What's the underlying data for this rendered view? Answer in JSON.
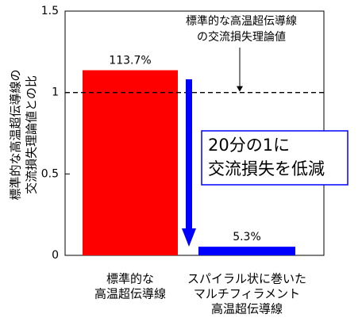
{
  "chart_data": {
    "type": "bar",
    "y_label": [
      "標準的な高温超伝導線の",
      "交流損失理論値との比"
    ],
    "categories": [
      [
        "標準的な",
        "高温超伝導線"
      ],
      [
        "スパイラル状に巻いた",
        "マルチフィラメント",
        "高温超伝導線"
      ]
    ],
    "values": [
      1.137,
      0.053
    ],
    "value_labels": [
      "113.7%",
      "5.3%"
    ],
    "colors": [
      "#ff0000",
      "#0000ff"
    ],
    "ylim": [
      0,
      1.5
    ],
    "yticks": [
      0,
      0.5,
      1,
      1.5
    ],
    "reference_line": {
      "value": 1,
      "label": [
        "標準的な高温超伝導線",
        "の交流損失理論値"
      ]
    },
    "callout": [
      "20分の1に",
      "交流損失を低減"
    ]
  }
}
